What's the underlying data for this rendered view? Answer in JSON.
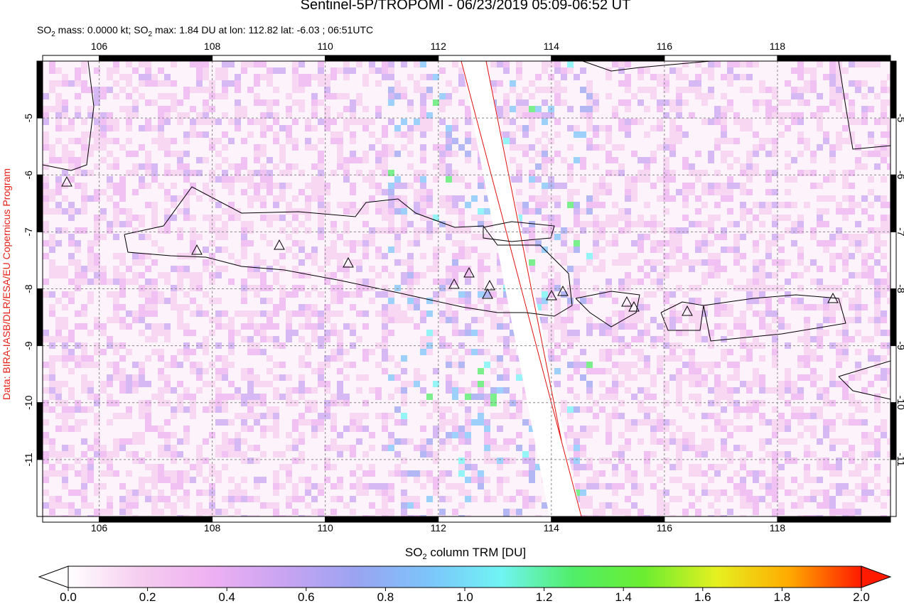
{
  "map": {
    "title": "Sentinel-5P/TROPOMI - 06/23/2019 05:09-06:52 UT",
    "subtitle_parts": [
      "SO",
      "2",
      " mass: 0.0000 kt; SO",
      "2",
      " max: 1.84 DU at lon: 112.82 lat: -6.03 ; 06:51UTC"
    ],
    "credit": "Data: BIRA-IASB/DLR/ESA/EU Copernicus Program",
    "xlim": [
      105,
      120
    ],
    "ylim": [
      -4,
      -12
    ],
    "xticks": [
      106,
      108,
      110,
      112,
      114,
      116,
      118
    ],
    "yticks": [
      -5,
      -6,
      -7,
      -8,
      -9,
      -10,
      -11
    ],
    "grid": true,
    "colorbar": {
      "label_parts": [
        "SO",
        "2",
        " column TRM [DU]"
      ],
      "lim": [
        0,
        2
      ],
      "ticks": [
        {
          "value": 0,
          "label": "0.0"
        },
        {
          "value": 0.2,
          "label": "0.2"
        },
        {
          "value": 0.4,
          "label": "0.4"
        },
        {
          "value": 0.6,
          "label": "0.6"
        },
        {
          "value": 0.8,
          "label": "0.8"
        },
        {
          "value": 1,
          "label": "1.0"
        },
        {
          "value": 1.2,
          "label": "1.2"
        },
        {
          "value": 1.4,
          "label": "1.4"
        },
        {
          "value": 1.6,
          "label": "1.6"
        },
        {
          "value": 1.8,
          "label": "1.8"
        },
        {
          "value": 2,
          "label": "2.0"
        }
      ],
      "colors": [
        "#ffffff",
        "#f6cdef",
        "#eeb0f2",
        "#c8a4f2",
        "#9aa4f2",
        "#7cc4fa",
        "#70f4f4",
        "#50ee68",
        "#6cee30",
        "#e6f020",
        "#ffaa00",
        "#ff1a00"
      ]
    }
  }
}
